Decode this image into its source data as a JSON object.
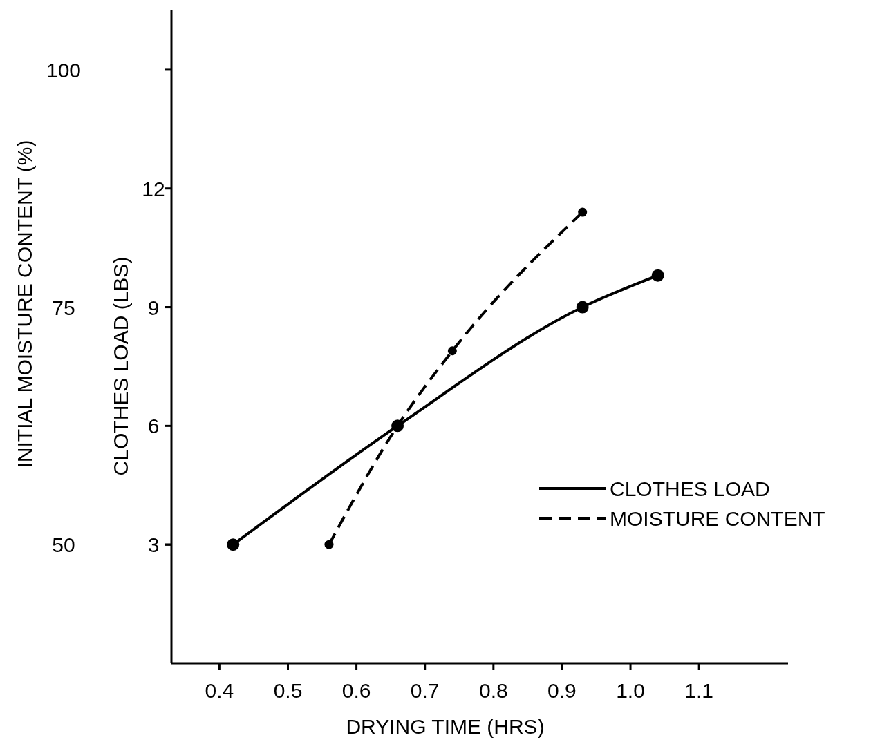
{
  "chart_data": {
    "type": "line",
    "xlabel": "DRYING TIME (HRS)",
    "ylabel": "CLOTHES LOAD (LBS)",
    "y2label": "INITIAL MOISTURE CONTENT (%)",
    "xlim": [
      0.33,
      1.23
    ],
    "xticks": [
      {
        "value": 0.4,
        "label": "0.4"
      },
      {
        "value": 0.5,
        "label": "0.5"
      },
      {
        "value": 0.6,
        "label": "0.6"
      },
      {
        "value": 0.7,
        "label": "0.7"
      },
      {
        "value": 0.8,
        "label": "0.8"
      },
      {
        "value": 0.9,
        "label": "0.9"
      },
      {
        "value": 1.0,
        "label": "1.0"
      },
      {
        "value": 1.1,
        "label": "1.1"
      }
    ],
    "ylim": [
      0,
      16.5
    ],
    "yticks": [
      3,
      6,
      9,
      12
    ],
    "y2lim": [
      37.5,
      106.25
    ],
    "y2ticks": [
      50,
      75,
      100
    ],
    "marker": "circle",
    "legend": "right",
    "grid": false,
    "series": [
      {
        "name": "CLOTHES LOAD",
        "color": "#000000",
        "line_style": "solid",
        "x": [
          0.42,
          0.66,
          0.93,
          1.04
        ],
        "values": [
          3,
          6,
          9,
          9.8
        ]
      },
      {
        "name": "MOISTURE CONTENT",
        "color": "#000000",
        "line_style": "dashed",
        "axis": "y2",
        "x": [
          0.56,
          0.66,
          0.74,
          0.93
        ],
        "values": [
          50,
          62.5,
          70.4,
          85
        ]
      }
    ]
  }
}
